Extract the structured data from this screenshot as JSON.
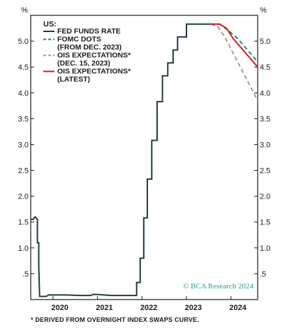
{
  "chart_data": {
    "type": "line",
    "y_unit_label_left": "%",
    "y_unit_label_right": "%",
    "yticks": [
      ".5",
      "1.0",
      "1.5",
      "2.0",
      "2.5",
      "3.0",
      "3.5",
      "4.0",
      "4.5",
      "5.0"
    ],
    "ylim": [
      0,
      5.5
    ],
    "xlim": [
      2019.5,
      2024.6
    ],
    "xticks": [
      "2020",
      "2021",
      "2022",
      "2023",
      "2024"
    ],
    "legend_title": "US:",
    "legend_placement": "top-left",
    "grid": false,
    "series": [
      {
        "name": "FED FUNDS RATE",
        "color": "#1f3b3a",
        "style": "solid",
        "points": [
          [
            2019.5,
            1.55
          ],
          [
            2019.55,
            1.55
          ],
          [
            2019.6,
            1.6
          ],
          [
            2019.65,
            1.55
          ],
          [
            2019.65,
            1.1
          ],
          [
            2019.68,
            1.1
          ],
          [
            2019.68,
            0.65
          ],
          [
            2019.7,
            0.06
          ],
          [
            2019.85,
            0.06
          ],
          [
            2019.9,
            0.09
          ],
          [
            2020.0,
            0.09
          ],
          [
            2020.3,
            0.09
          ],
          [
            2020.6,
            0.08
          ],
          [
            2020.85,
            0.08
          ],
          [
            2020.9,
            0.1
          ],
          [
            2021.0,
            0.1
          ],
          [
            2021.3,
            0.08
          ],
          [
            2021.6,
            0.08
          ],
          [
            2021.8,
            0.08
          ],
          [
            2021.8,
            0.08
          ],
          [
            2021.88,
            0.08
          ],
          [
            2021.88,
            0.33
          ],
          [
            2021.96,
            0.33
          ],
          [
            2021.96,
            0.8
          ],
          [
            2022.04,
            0.8
          ],
          [
            2022.04,
            1.58
          ],
          [
            2022.12,
            1.58
          ],
          [
            2022.12,
            2.33
          ],
          [
            2022.22,
            2.33
          ],
          [
            2022.22,
            3.08
          ],
          [
            2022.34,
            3.08
          ],
          [
            2022.34,
            3.83
          ],
          [
            2022.46,
            3.83
          ],
          [
            2022.46,
            4.33
          ],
          [
            2022.58,
            4.33
          ],
          [
            2022.58,
            4.58
          ],
          [
            2022.7,
            4.58
          ],
          [
            2022.7,
            4.83
          ],
          [
            2022.8,
            4.83
          ],
          [
            2022.8,
            5.08
          ],
          [
            2023.0,
            5.08
          ],
          [
            2023.0,
            5.33
          ],
          [
            2023.55,
            5.33
          ]
        ]
      },
      {
        "name": "FOMC DOTS (FROM DEC. 2023)",
        "color": "#1f8a6e",
        "style": "dashed",
        "points": [
          [
            2023.55,
            5.33
          ],
          [
            2023.75,
            5.33
          ],
          [
            2023.95,
            5.2
          ],
          [
            2024.15,
            5.05
          ],
          [
            2024.3,
            4.9
          ],
          [
            2024.45,
            4.75
          ],
          [
            2024.6,
            4.6
          ]
        ]
      },
      {
        "name": "OIS EXPECTATIONS* (DEC. 15, 2023)",
        "color": "#a89a8c",
        "style": "dashed",
        "points": [
          [
            2023.55,
            5.33
          ],
          [
            2023.7,
            5.28
          ],
          [
            2023.85,
            5.1
          ],
          [
            2024.0,
            4.85
          ],
          [
            2024.15,
            4.6
          ],
          [
            2024.3,
            4.35
          ],
          [
            2024.45,
            4.1
          ],
          [
            2024.6,
            3.85
          ]
        ]
      },
      {
        "name": "OIS EXPECTATIONS* (LATEST)",
        "color": "#d11a1a",
        "style": "solid",
        "points": [
          [
            2023.55,
            5.33
          ],
          [
            2023.75,
            5.33
          ],
          [
            2023.9,
            5.25
          ],
          [
            2024.05,
            5.05
          ],
          [
            2024.2,
            4.9
          ],
          [
            2024.35,
            4.75
          ],
          [
            2024.5,
            4.6
          ],
          [
            2024.6,
            4.5
          ]
        ]
      }
    ],
    "legend_lines": [
      {
        "text": "FED FUNDS RATE",
        "series": 0
      },
      {
        "text": "FOMC DOTS",
        "series": 1
      },
      {
        "text": "(FROM DEC. 2023)",
        "series": -1
      },
      {
        "text": "OIS EXPECTATIONS*",
        "series": 2
      },
      {
        "text": "(DEC. 15, 2023)",
        "series": -1
      },
      {
        "text": "OIS EXPECTATIONS*",
        "series": 3
      },
      {
        "text": "(LATEST)",
        "series": -1
      }
    ],
    "credit": "© BCA Research 2024",
    "footnote": "* DERIVED FROM OVERNIGHT INDEX SWAPS CURVE."
  }
}
